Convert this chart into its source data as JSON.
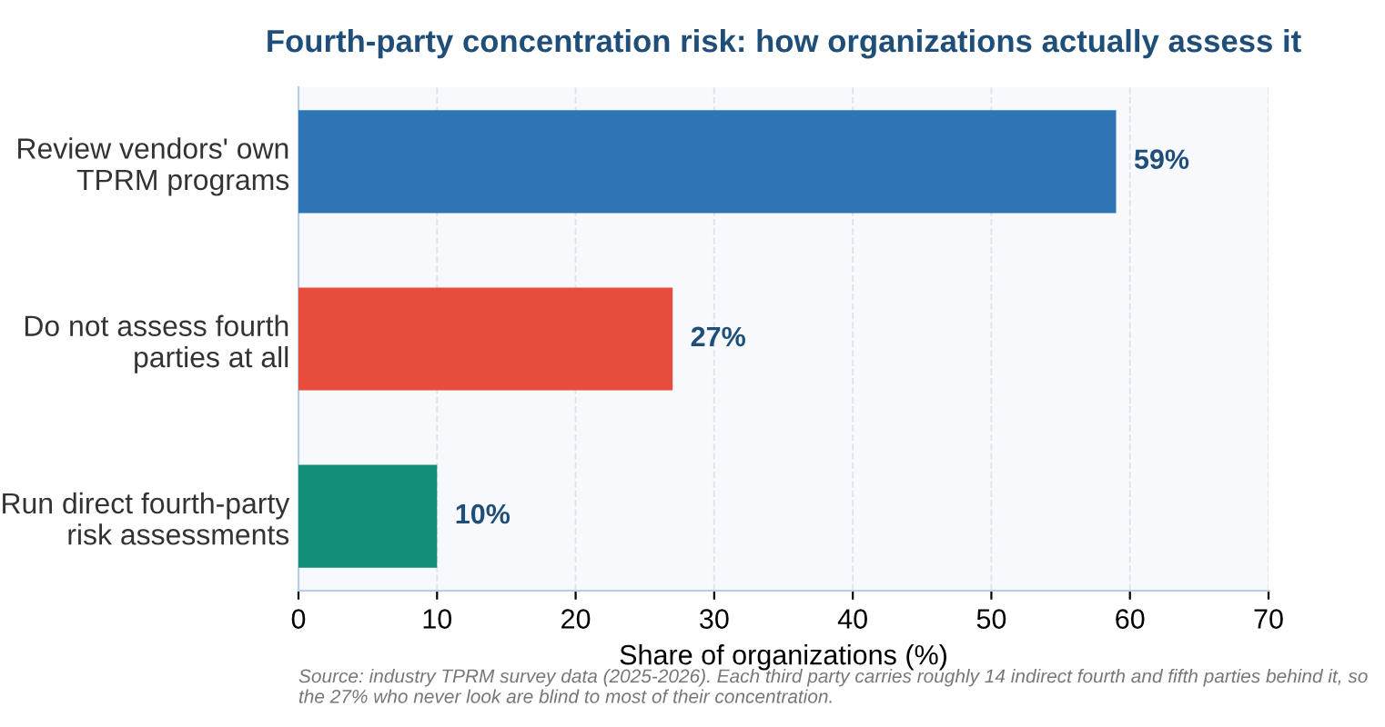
{
  "chart_data": {
    "type": "bar",
    "orientation": "horizontal",
    "title": "Fourth-party concentration risk: how organizations actually assess it",
    "categories": [
      "Review vendors' own\nTPRM programs",
      "Do not assess fourth\nparties at all",
      "Run direct fourth-party\nrisk assessments"
    ],
    "values": [
      59,
      27,
      10
    ],
    "colors": [
      "#2e75b6",
      "#e74c3c",
      "#148f77"
    ],
    "value_labels": [
      "59%",
      "27%",
      "10%"
    ],
    "xlabel": "Share of organizations (%)",
    "xlim": [
      0,
      70
    ],
    "xticks": [
      0,
      10,
      20,
      30,
      40,
      50,
      60,
      70
    ],
    "grid": "x",
    "annotations": [
      "Source: industry TPRM survey data (2025-2026). Each third party carries roughly 14 indirect fourth and fifth parties behind it, so the 27% who never look are blind to most of their concentration."
    ]
  }
}
